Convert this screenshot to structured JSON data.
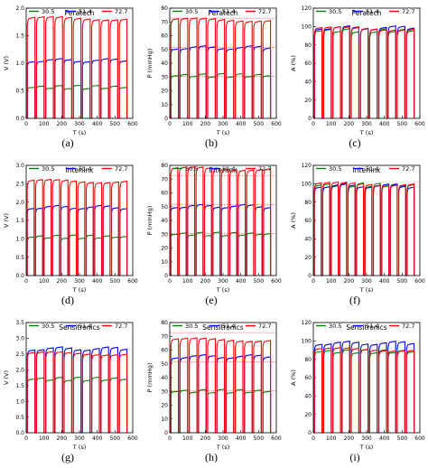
{
  "colors": {
    "s30": "#008000",
    "s51": "#0000ee",
    "s72": "#ff0000",
    "ref": "#cc0000"
  },
  "legend_labels": [
    "30.5",
    "51.4",
    "72.7"
  ],
  "chart_data": [
    {
      "id": "a",
      "type": "line",
      "caption": "(a)",
      "title": "Peratech",
      "ylabel": "V (V)",
      "xlabel": "T (s)",
      "ylim": [
        0,
        2.2
      ],
      "yticks": [
        "0.0",
        "0.5",
        "1.0",
        "1.5",
        "2.0"
      ],
      "xticks": [
        "0",
        "100",
        "200",
        "300",
        "400",
        "500",
        "600"
      ],
      "series": [
        {
          "name": "30.5",
          "level": 0.62
        },
        {
          "name": "51.4",
          "level": 1.15
        },
        {
          "name": "72.7",
          "level": 1.98
        }
      ],
      "reference": [],
      "pulses": 11,
      "x_range": [
        0,
        570
      ]
    },
    {
      "id": "b",
      "type": "line",
      "caption": "(b)",
      "title": "Peratech",
      "ylabel": "P (mmHg)",
      "xlabel": "T (s)",
      "ylim": [
        0,
        80
      ],
      "yticks": [
        "0",
        "10",
        "20",
        "30",
        "40",
        "50",
        "60",
        "70",
        "80"
      ],
      "xticks": [
        "0",
        "100",
        "200",
        "300",
        "400",
        "500",
        "600"
      ],
      "series": [
        {
          "name": "30.5",
          "level": 31
        },
        {
          "name": "51.4",
          "level": 51
        },
        {
          "name": "72.7",
          "level": 71
        }
      ],
      "reference": [
        30.5,
        51.4,
        72.7
      ],
      "pulses": 11,
      "x_range": [
        0,
        570
      ]
    },
    {
      "id": "c",
      "type": "line",
      "caption": "(c)",
      "title": "Peratech",
      "ylabel": "A (%)",
      "xlabel": "T (s)",
      "ylim": [
        0,
        120
      ],
      "yticks": [
        "0",
        "20",
        "40",
        "60",
        "80",
        "100",
        "120"
      ],
      "xticks": [
        "0",
        "100",
        "200",
        "300",
        "400",
        "500",
        "600"
      ],
      "series": [
        {
          "name": "30.5",
          "level": 95
        },
        {
          "name": "51.4",
          "level": 98
        },
        {
          "name": "72.7",
          "level": 97
        }
      ],
      "reference": [],
      "pulses": 11,
      "x_range": [
        0,
        570
      ]
    },
    {
      "id": "d",
      "type": "line",
      "caption": "(d)",
      "title": "Interlink",
      "ylabel": "V (V)",
      "xlabel": "T (s)",
      "ylim": [
        0,
        3.0
      ],
      "yticks": [
        "0.0",
        "0.5",
        "1.0",
        "1.5",
        "2.0",
        "2.5",
        "3.0"
      ],
      "xticks": [
        "0",
        "100",
        "200",
        "300",
        "400",
        "500",
        "600"
      ],
      "series": [
        {
          "name": "30.5",
          "level": 1.05
        },
        {
          "name": "51.4",
          "level": 1.85
        },
        {
          "name": "72.7",
          "level": 2.55
        }
      ],
      "reference": [],
      "pulses": 12,
      "x_range": [
        0,
        570
      ]
    },
    {
      "id": "e",
      "type": "line",
      "caption": "(e)",
      "title": "Interlink",
      "ylabel": "P (mmHg)",
      "xlabel": "T (s)",
      "ylim": [
        0,
        80
      ],
      "yticks": [
        "0",
        "10",
        "20",
        "30",
        "40",
        "50",
        "60",
        "70",
        "80"
      ],
      "xticks": [
        "0",
        "100",
        "200",
        "300",
        "400",
        "500",
        "600"
      ],
      "series": [
        {
          "name": "30.5",
          "level": 30
        },
        {
          "name": "51.4",
          "level": 50
        },
        {
          "name": "72.7",
          "level": 77
        }
      ],
      "reference": [
        30.5,
        51.4,
        72.7
      ],
      "pulses": 12,
      "x_range": [
        0,
        570
      ]
    },
    {
      "id": "f",
      "type": "line",
      "caption": "(f)",
      "title": "Interlink",
      "ylabel": "A (%)",
      "xlabel": "T (s)",
      "ylim": [
        0,
        120
      ],
      "yticks": [
        "0",
        "20",
        "40",
        "60",
        "80",
        "100",
        "120"
      ],
      "xticks": [
        "0",
        "100",
        "200",
        "300",
        "400",
        "500",
        "600"
      ],
      "series": [
        {
          "name": "30.5",
          "level": 98
        },
        {
          "name": "51.4",
          "level": 97
        },
        {
          "name": "72.7",
          "level": 99
        }
      ],
      "reference": [],
      "pulses": 12,
      "x_range": [
        0,
        570
      ]
    },
    {
      "id": "g",
      "type": "line",
      "caption": "(g)",
      "title": "Sensitronics",
      "ylabel": "V (V)",
      "xlabel": "T (s)",
      "ylim": [
        0,
        3.5
      ],
      "yticks": [
        "0.0",
        "0.5",
        "1.0",
        "1.5",
        "2.0",
        "2.5",
        "3.0",
        "3.5"
      ],
      "xticks": [
        "0",
        "100",
        "200",
        "300",
        "400",
        "500",
        "600"
      ],
      "series": [
        {
          "name": "30.5",
          "level": 1.7
        },
        {
          "name": "51.4",
          "level": 2.65
        },
        {
          "name": "72.7",
          "level": 2.5
        }
      ],
      "reference": [],
      "pulses": 11,
      "x_range": [
        0,
        570
      ]
    },
    {
      "id": "h",
      "type": "line",
      "caption": "(h)",
      "title": "Sensitronics",
      "ylabel": "P (mmHg)",
      "xlabel": "T (s)",
      "ylim": [
        0,
        80
      ],
      "yticks": [
        "0",
        "10",
        "20",
        "30",
        "40",
        "50",
        "60",
        "70",
        "80"
      ],
      "xticks": [
        "0",
        "100",
        "200",
        "300",
        "400",
        "500",
        "600"
      ],
      "series": [
        {
          "name": "30.5",
          "level": 30
        },
        {
          "name": "51.4",
          "level": 55
        },
        {
          "name": "72.7",
          "level": 67
        }
      ],
      "reference": [
        30.5,
        51.4,
        72.7
      ],
      "pulses": 11,
      "x_range": [
        0,
        570
      ]
    },
    {
      "id": "i",
      "type": "line",
      "caption": "(i)",
      "title": "Sensitronics",
      "ylabel": "A (%)",
      "xlabel": "T (s)",
      "ylim": [
        0,
        120
      ],
      "yticks": [
        "0",
        "20",
        "40",
        "60",
        "80",
        "100",
        "120"
      ],
      "xticks": [
        "0",
        "100",
        "200",
        "300",
        "400",
        "500",
        "600"
      ],
      "series": [
        {
          "name": "30.5",
          "level": 88
        },
        {
          "name": "51.4",
          "level": 97
        },
        {
          "name": "72.7",
          "level": 90
        }
      ],
      "reference": [],
      "pulses": 11,
      "x_range": [
        0,
        570
      ]
    }
  ]
}
